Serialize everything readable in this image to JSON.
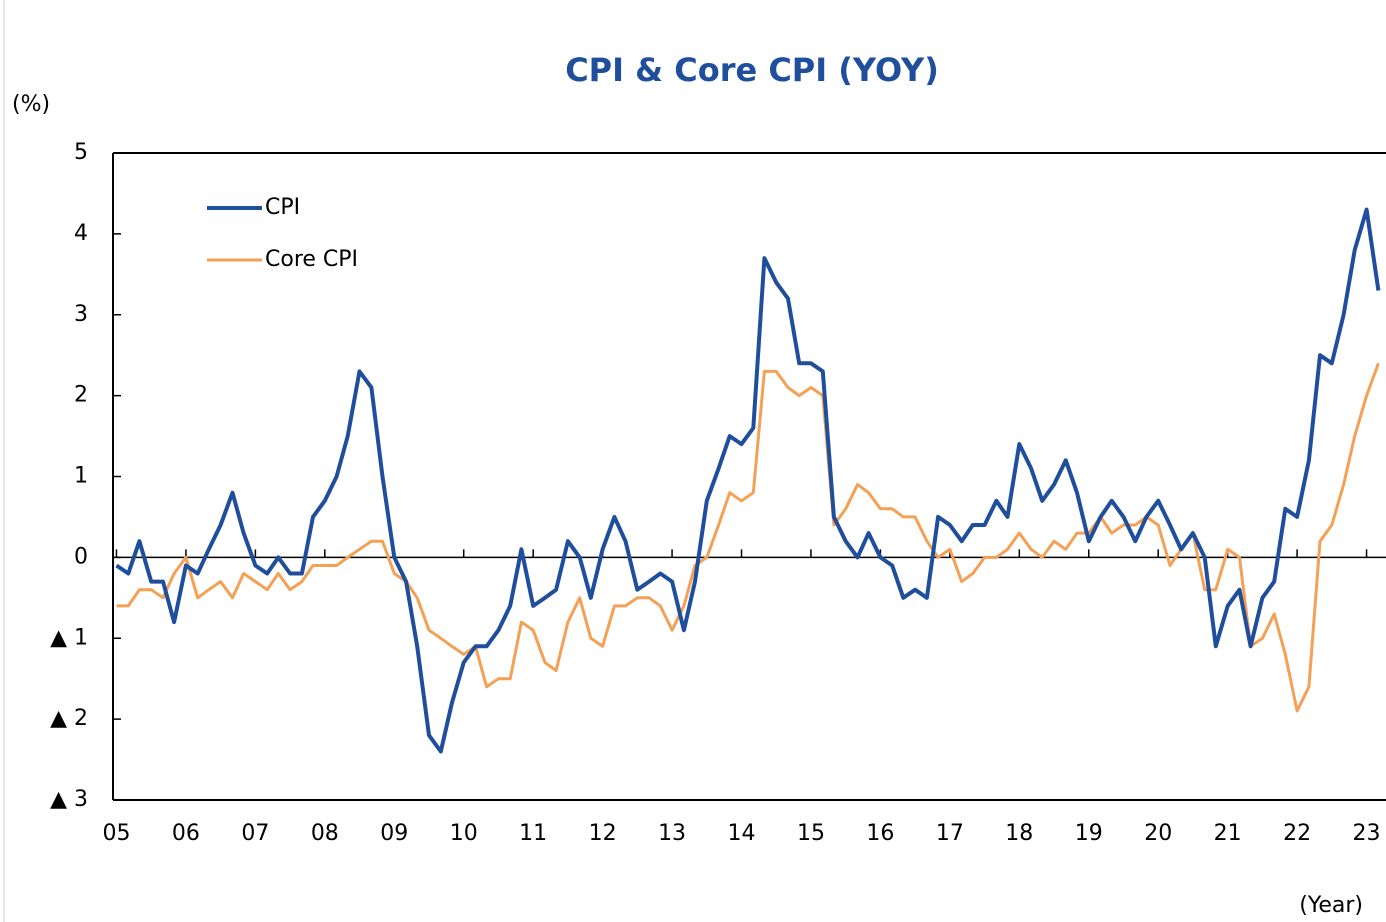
{
  "chart_data": {
    "type": "line",
    "title": "CPI & Core CPI (YOY)",
    "y_label": "(%)",
    "x_label": "(Year)",
    "x": [
      2005,
      2005.17,
      2005.33,
      2005.5,
      2005.67,
      2005.83,
      2006,
      2006.17,
      2006.33,
      2006.5,
      2006.67,
      2006.83,
      2007,
      2007.17,
      2007.33,
      2007.5,
      2007.67,
      2007.83,
      2008,
      2008.17,
      2008.33,
      2008.5,
      2008.67,
      2008.83,
      2009,
      2009.17,
      2009.33,
      2009.5,
      2009.67,
      2009.83,
      2010,
      2010.17,
      2010.33,
      2010.5,
      2010.67,
      2010.83,
      2011,
      2011.17,
      2011.33,
      2011.5,
      2011.67,
      2011.83,
      2012,
      2012.17,
      2012.33,
      2012.5,
      2012.67,
      2012.83,
      2013,
      2013.17,
      2013.33,
      2013.5,
      2013.67,
      2013.83,
      2014,
      2014.17,
      2014.33,
      2014.5,
      2014.67,
      2014.83,
      2015,
      2015.17,
      2015.33,
      2015.5,
      2015.67,
      2015.83,
      2016,
      2016.17,
      2016.33,
      2016.5,
      2016.67,
      2016.83,
      2017,
      2017.17,
      2017.33,
      2017.5,
      2017.67,
      2017.83,
      2018,
      2018.17,
      2018.33,
      2018.5,
      2018.67,
      2018.83,
      2019,
      2019.17,
      2019.33,
      2019.5,
      2019.67,
      2019.83,
      2020,
      2020.17,
      2020.33,
      2020.5,
      2020.67,
      2020.83,
      2021,
      2021.17,
      2021.33,
      2021.5,
      2021.67,
      2021.83,
      2022,
      2022.17,
      2022.33,
      2022.5,
      2022.67,
      2022.83,
      2023,
      2023.17
    ],
    "series": [
      {
        "name": "CPI",
        "color": "#1f4e9c",
        "values": [
          -0.1,
          -0.2,
          0.2,
          -0.3,
          -0.3,
          -0.8,
          -0.1,
          -0.2,
          0.1,
          0.4,
          0.8,
          0.3,
          -0.1,
          -0.2,
          0.0,
          -0.2,
          -0.2,
          0.5,
          0.7,
          1.0,
          1.5,
          2.3,
          2.1,
          1.0,
          0.0,
          -0.3,
          -1.1,
          -2.2,
          -2.4,
          -1.8,
          -1.3,
          -1.1,
          -1.1,
          -0.9,
          -0.6,
          0.1,
          -0.6,
          -0.5,
          -0.4,
          0.2,
          0.0,
          -0.5,
          0.1,
          0.5,
          0.2,
          -0.4,
          -0.3,
          -0.2,
          -0.3,
          -0.9,
          -0.3,
          0.7,
          1.1,
          1.5,
          1.4,
          1.6,
          3.7,
          3.4,
          3.2,
          2.4,
          2.4,
          2.3,
          0.5,
          0.2,
          0.0,
          0.3,
          0.0,
          -0.1,
          -0.5,
          -0.4,
          -0.5,
          0.5,
          0.4,
          0.2,
          0.4,
          0.4,
          0.7,
          0.5,
          1.4,
          1.1,
          0.7,
          0.9,
          1.2,
          0.8,
          0.2,
          0.5,
          0.7,
          0.5,
          0.2,
          0.5,
          0.7,
          0.4,
          0.1,
          0.3,
          0.0,
          -1.1,
          -0.6,
          -0.4,
          -1.1,
          -0.5,
          -0.3,
          0.6,
          0.5,
          1.2,
          2.5,
          2.4,
          3.0,
          3.8,
          4.3,
          3.3
        ]
      },
      {
        "name": "Core CPI",
        "color": "#f4a055",
        "values": [
          -0.6,
          -0.6,
          -0.4,
          -0.4,
          -0.5,
          -0.2,
          0.0,
          -0.5,
          -0.4,
          -0.3,
          -0.5,
          -0.2,
          -0.3,
          -0.4,
          -0.2,
          -0.4,
          -0.3,
          -0.1,
          -0.1,
          -0.1,
          0.0,
          0.1,
          0.2,
          0.2,
          -0.2,
          -0.3,
          -0.5,
          -0.9,
          -1.0,
          -1.1,
          -1.2,
          -1.1,
          -1.6,
          -1.5,
          -1.5,
          -0.8,
          -0.9,
          -1.3,
          -1.4,
          -0.8,
          -0.5,
          -1.0,
          -1.1,
          -0.6,
          -0.6,
          -0.5,
          -0.5,
          -0.6,
          -0.9,
          -0.6,
          -0.1,
          0.0,
          0.4,
          0.8,
          0.7,
          0.8,
          2.3,
          2.3,
          2.1,
          2.0,
          2.1,
          2.0,
          0.4,
          0.6,
          0.9,
          0.8,
          0.6,
          0.6,
          0.5,
          0.5,
          0.2,
          0.0,
          0.1,
          -0.3,
          -0.2,
          0.0,
          0.0,
          0.1,
          0.3,
          0.1,
          0.0,
          0.2,
          0.1,
          0.3,
          0.3,
          0.5,
          0.3,
          0.4,
          0.4,
          0.5,
          0.4,
          -0.1,
          0.1,
          0.3,
          -0.4,
          -0.4,
          0.1,
          0.0,
          -1.1,
          -1.0,
          -0.7,
          -1.2,
          -1.9,
          -1.6,
          0.2,
          0.4,
          0.9,
          1.5,
          2.0,
          2.4
        ]
      }
    ],
    "xlim": [
      2004.95,
      2023.28
    ],
    "xticks": [
      {
        "value": 2005,
        "label": "05"
      },
      {
        "value": 2006,
        "label": "06"
      },
      {
        "value": 2007,
        "label": "07"
      },
      {
        "value": 2008,
        "label": "08"
      },
      {
        "value": 2009,
        "label": "09"
      },
      {
        "value": 2010,
        "label": "10"
      },
      {
        "value": 2011,
        "label": "11"
      },
      {
        "value": 2012,
        "label": "12"
      },
      {
        "value": 2013,
        "label": "13"
      },
      {
        "value": 2014,
        "label": "14"
      },
      {
        "value": 2015,
        "label": "15"
      },
      {
        "value": 2016,
        "label": "16"
      },
      {
        "value": 2017,
        "label": "17"
      },
      {
        "value": 2018,
        "label": "18"
      },
      {
        "value": 2019,
        "label": "19"
      },
      {
        "value": 2020,
        "label": "20"
      },
      {
        "value": 2021,
        "label": "21"
      },
      {
        "value": 2022,
        "label": "22"
      },
      {
        "value": 2023,
        "label": "23"
      }
    ],
    "ylim": [
      -3,
      5
    ],
    "yticks": [
      5,
      4,
      3,
      2,
      1,
      0,
      {
        "value": -1,
        "label": "▲ 1"
      },
      {
        "value": -2,
        "label": "▲ 2"
      },
      {
        "value": -3,
        "label": "▲ 3"
      }
    ],
    "legend": "upper left"
  }
}
